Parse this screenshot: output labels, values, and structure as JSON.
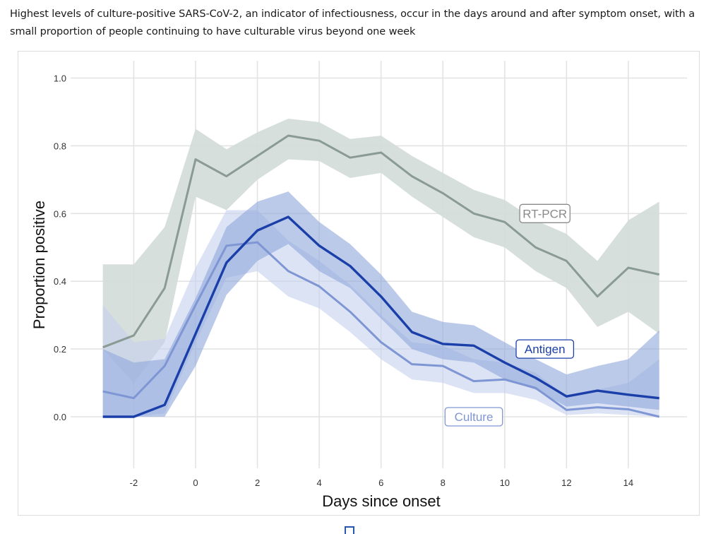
{
  "caption": "Highest levels of culture-positive SARS-CoV-2, an indicator of infectiousness, occur in the days around and after symptom onset, with a small proportion of people continuing to have culturable virus beyond one week",
  "colors": {
    "rtpcr_line": "#8a9a94",
    "rtpcr_band": "#d3dbd8",
    "antigen_line": "#1a3fa8",
    "antigen_band": "#8fa6dc",
    "culture_line": "#7f96d4",
    "culture_band": "#c4d0ef",
    "grid": "#e3e3e3"
  },
  "chart_data": {
    "type": "line",
    "title": "",
    "xlabel": "Days since onset",
    "ylabel": "Proportion positive",
    "xlim": [
      -3,
      15
    ],
    "ylim": [
      -0.15,
      1.05
    ],
    "grid": true,
    "x_ticks": [
      -2,
      0,
      2,
      4,
      6,
      8,
      10,
      12,
      14
    ],
    "x_tick_labels": [
      "-2",
      "0",
      "2",
      "4",
      "6",
      "8",
      "10",
      "12",
      "14"
    ],
    "y_ticks": [
      0.0,
      0.2,
      0.4,
      0.6,
      0.8,
      1.0
    ],
    "y_tick_labels": [
      "0.0",
      "0.2",
      "0.4",
      "0.6",
      "0.8",
      "1.0"
    ],
    "x": [
      -3,
      -2,
      -1,
      0,
      1,
      2,
      3,
      4,
      5,
      6,
      7,
      8,
      9,
      10,
      11,
      12,
      13,
      14,
      15
    ],
    "series": [
      {
        "name": "RT-PCR",
        "label": "RT-PCR",
        "label_at": [
          11.3,
          0.6
        ],
        "values": [
          0.205,
          0.24,
          0.38,
          0.76,
          0.71,
          0.77,
          0.83,
          0.815,
          0.765,
          0.78,
          0.71,
          0.66,
          0.6,
          0.575,
          0.5,
          0.46,
          0.355,
          0.44,
          0.42
        ],
        "lower": [
          0.2,
          0.1,
          0.22,
          0.65,
          0.61,
          0.7,
          0.76,
          0.755,
          0.705,
          0.72,
          0.65,
          0.59,
          0.53,
          0.5,
          0.43,
          0.38,
          0.265,
          0.31,
          0.245
        ],
        "upper": [
          0.45,
          0.45,
          0.56,
          0.85,
          0.79,
          0.84,
          0.88,
          0.87,
          0.82,
          0.83,
          0.77,
          0.72,
          0.67,
          0.64,
          0.58,
          0.54,
          0.46,
          0.58,
          0.635
        ]
      },
      {
        "name": "Culture",
        "label": "Culture",
        "label_at": [
          9.0,
          0.0
        ],
        "values": [
          0.075,
          0.055,
          0.15,
          0.33,
          0.505,
          0.515,
          0.43,
          0.385,
          0.31,
          0.22,
          0.155,
          0.15,
          0.105,
          0.11,
          0.085,
          0.02,
          0.028,
          0.022,
          0.0
        ],
        "lower": [
          0.0,
          0.0,
          0.01,
          0.22,
          0.41,
          0.43,
          0.355,
          0.32,
          0.25,
          0.17,
          0.11,
          0.1,
          0.07,
          0.07,
          0.05,
          0.005,
          0.01,
          0.005,
          0.0
        ],
        "upper": [
          0.33,
          0.22,
          0.23,
          0.44,
          0.61,
          0.61,
          0.52,
          0.46,
          0.39,
          0.3,
          0.22,
          0.21,
          0.17,
          0.16,
          0.13,
          0.06,
          0.08,
          0.1,
          0.17
        ]
      },
      {
        "name": "Antigen",
        "label": "Antigen",
        "label_at": [
          11.3,
          0.2
        ],
        "values": [
          0.0,
          0.0,
          0.035,
          0.245,
          0.455,
          0.55,
          0.59,
          0.505,
          0.445,
          0.355,
          0.25,
          0.215,
          0.21,
          0.16,
          0.115,
          0.06,
          0.077,
          0.065,
          0.055
        ],
        "lower": [
          0.0,
          0.0,
          0.0,
          0.15,
          0.36,
          0.46,
          0.51,
          0.43,
          0.38,
          0.29,
          0.2,
          0.17,
          0.16,
          0.11,
          0.08,
          0.03,
          0.04,
          0.03,
          0.02
        ],
        "upper": [
          0.2,
          0.16,
          0.17,
          0.35,
          0.56,
          0.635,
          0.665,
          0.575,
          0.51,
          0.42,
          0.31,
          0.28,
          0.27,
          0.22,
          0.17,
          0.125,
          0.15,
          0.17,
          0.255
        ]
      }
    ]
  },
  "footer_icon": "expand-icon"
}
